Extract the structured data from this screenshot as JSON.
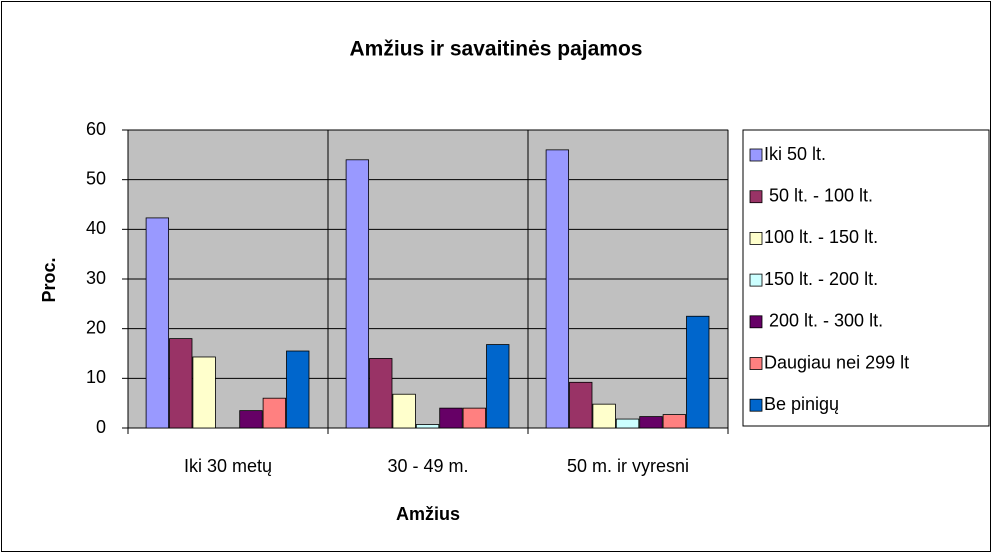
{
  "chart_data": {
    "type": "bar",
    "title": "Amžius ir savaitinės pajamos",
    "x_label": "Amžius",
    "y_label": "Proc.",
    "categories": [
      "Iki 30 metų",
      "30 - 49 m.",
      "50 m. ir vyresni"
    ],
    "series": [
      {
        "name": "Iki 50 lt.",
        "color": "#9999ff",
        "values": [
          42.3,
          54,
          56
        ]
      },
      {
        "name": " 50 lt. - 100 lt.",
        "color": "#993366",
        "values": [
          18,
          14,
          9.2
        ]
      },
      {
        "name": "100 lt. - 150 lt.",
        "color": "#ffffcc",
        "values": [
          14.3,
          6.8,
          4.8
        ]
      },
      {
        "name": "150 lt. - 200 lt.",
        "color": "#ccffff",
        "values": [
          0,
          0.7,
          1.8
        ]
      },
      {
        "name": " 200 lt. - 300 lt.",
        "color": "#660066",
        "values": [
          3.5,
          4,
          2.3
        ]
      },
      {
        "name": "Daugiau nei 299 lt",
        "color": "#ff8080",
        "values": [
          6,
          4,
          2.7
        ]
      },
      {
        "name": "Be pinigų",
        "color": "#0066cc",
        "values": [
          15.5,
          16.8,
          22.5
        ]
      }
    ],
    "ylim": [
      0,
      60
    ],
    "yticks": [
      0,
      10,
      20,
      30,
      40,
      50,
      60
    ],
    "grid": true,
    "legend": "right",
    "plot_background": "#c0c0c0"
  }
}
